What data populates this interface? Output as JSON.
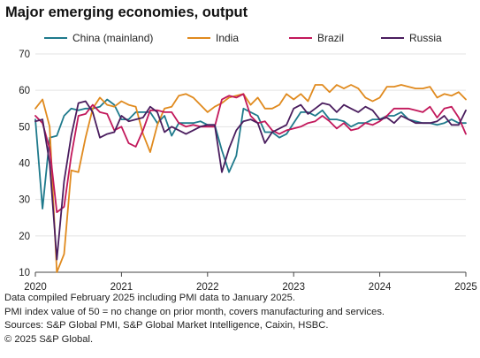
{
  "title": "Major emerging economies, output",
  "legend": [
    {
      "name": "China (mainland)",
      "color": "#1f7a8c"
    },
    {
      "name": "India",
      "color": "#e08a1e"
    },
    {
      "name": "Brazil",
      "color": "#c2185b"
    },
    {
      "name": "Russia",
      "color": "#4a1d5e"
    }
  ],
  "footnotes": [
    "Data compiled February 2025 including PMI data to January  2025.",
    "PMI index value of 50 = no change on prior month, covers manufacturing and services.",
    "Sources: S&P Global PMI, S&P Global Market Intelligence,  Caixin, HSBC.",
    "© 2025 S&P Global."
  ],
  "chart_data": {
    "type": "line",
    "title": "Major emerging economies, output",
    "xlabel": "",
    "ylabel": "",
    "ylim": [
      10,
      70
    ],
    "yticks": [
      10,
      20,
      30,
      40,
      50,
      60,
      70
    ],
    "xticks": [
      "2020",
      "2021",
      "2022",
      "2023",
      "2024",
      "2025"
    ],
    "x_start": "2020-01",
    "x_end": "2025-01",
    "grid": "horizontal",
    "legend_position": "top",
    "series": [
      {
        "name": "China (mainland)",
        "color": "#1f7a8c",
        "values": [
          52,
          27.5,
          47,
          47.5,
          53,
          55,
          54.5,
          55,
          55,
          55.5,
          57.5,
          56,
          52,
          52,
          54,
          54,
          54,
          51,
          53,
          47.5,
          51,
          51,
          51,
          51.5,
          50.5,
          50.5,
          43.5,
          37.5,
          42,
          55,
          54,
          53,
          48.5,
          48.5,
          47,
          48,
          51,
          54,
          54,
          53,
          54.5,
          52,
          52,
          51.5,
          50,
          51,
          51,
          52,
          52,
          53,
          53,
          54,
          52,
          51.5,
          51,
          51,
          50.5,
          51,
          52,
          51,
          51
        ]
      },
      {
        "name": "India",
        "color": "#e08a1e",
        "values": [
          55,
          57.5,
          50,
          10,
          15,
          38,
          37.5,
          47,
          55,
          58,
          56,
          55.5,
          57,
          56,
          55.5,
          48,
          43,
          50.5,
          55,
          55.5,
          58.5,
          59,
          58,
          56,
          54,
          55.5,
          56.5,
          58,
          58.5,
          59,
          56,
          58,
          55,
          55,
          56,
          59,
          57.5,
          59,
          57,
          61.5,
          61.5,
          59.5,
          61.5,
          60.5,
          61.5,
          60.5,
          58,
          57,
          58,
          61,
          61,
          61.5,
          61,
          60.5,
          60.5,
          61,
          58,
          59,
          58.5,
          59.5,
          57.5
        ]
      },
      {
        "name": "Brazil",
        "color": "#c2185b",
        "values": [
          53,
          51,
          44,
          26.5,
          28,
          42,
          53,
          53.5,
          56,
          54,
          53.5,
          49,
          50,
          45.5,
          44.5,
          49,
          54.5,
          54.5,
          54,
          54,
          51,
          50,
          50.5,
          50,
          50,
          50,
          57.5,
          58.5,
          58,
          59,
          53,
          51,
          51.5,
          49,
          48,
          49,
          49.5,
          50,
          51,
          51.5,
          53,
          51.5,
          49.5,
          51,
          49,
          49.5,
          51,
          50.5,
          51.5,
          53,
          55,
          55,
          55,
          54.5,
          54,
          55.5,
          52.5,
          55,
          55.5,
          52.5,
          48
        ]
      },
      {
        "name": "Russia",
        "color": "#4a1d5e",
        "values": [
          51.5,
          52,
          40,
          13.5,
          35,
          47.5,
          56.5,
          57,
          54,
          47,
          48,
          48.5,
          53,
          51.5,
          52,
          52.5,
          55.5,
          54,
          48.5,
          50,
          49,
          48,
          49,
          50,
          50.5,
          50.5,
          37.5,
          44,
          49,
          51.5,
          52,
          51,
          45.5,
          48.5,
          49.5,
          50.5,
          55,
          56,
          53.5,
          55,
          56.5,
          56,
          54,
          56,
          55,
          54,
          55.5,
          54.5,
          52,
          52.5,
          51,
          53,
          52,
          51,
          51,
          51,
          51.5,
          53,
          50.5,
          50.5,
          54.5
        ]
      }
    ]
  }
}
